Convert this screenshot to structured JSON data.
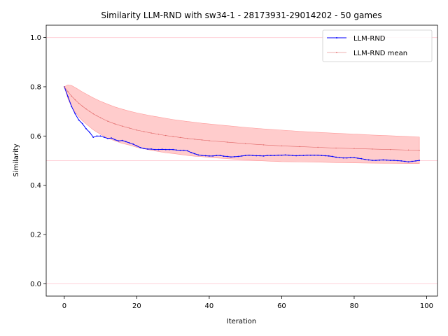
{
  "chart_data": {
    "type": "line",
    "title": "Similarity LLM-RND with sw34-1 - 28173931-29014202 - 50 games",
    "xlabel": "Iteration",
    "ylabel": "Similarity",
    "xlim": [
      -5,
      103
    ],
    "ylim": [
      -0.05,
      1.05
    ],
    "x_ticks": [
      0,
      20,
      40,
      60,
      80,
      100
    ],
    "x_tick_labels": [
      "0",
      "20",
      "40",
      "60",
      "80",
      "100"
    ],
    "y_ticks": [
      0.0,
      0.2,
      0.4,
      0.6,
      0.8,
      1.0
    ],
    "y_tick_labels": [
      "0.0",
      "0.2",
      "0.4",
      "0.6",
      "0.8",
      "1.0"
    ],
    "reference_lines": [
      0.0,
      0.5,
      1.0
    ],
    "legend_position": "top-right",
    "colors": {
      "llm_rnd": "#0000ff",
      "mean": "#e06666",
      "band": "#ffcccc",
      "reference": "#ffd0d8"
    },
    "series": [
      {
        "name": "LLM-RND",
        "x": [
          0,
          1,
          2,
          3,
          4,
          5,
          6,
          7,
          8,
          9,
          10,
          11,
          12,
          13,
          14,
          15,
          16,
          17,
          18,
          19,
          20,
          21,
          22,
          23,
          24,
          25,
          26,
          27,
          28,
          29,
          30,
          31,
          32,
          33,
          34,
          35,
          36,
          37,
          38,
          39,
          40,
          41,
          42,
          43,
          44,
          45,
          46,
          47,
          48,
          49,
          50,
          51,
          52,
          53,
          54,
          55,
          56,
          57,
          58,
          59,
          60,
          61,
          62,
          63,
          64,
          65,
          66,
          67,
          68,
          69,
          70,
          71,
          72,
          73,
          74,
          75,
          76,
          77,
          78,
          79,
          80,
          81,
          82,
          83,
          84,
          85,
          86,
          87,
          88,
          89,
          90,
          91,
          92,
          93,
          94,
          95,
          96,
          97,
          98
        ],
        "values": [
          0.8,
          0.76,
          0.72,
          0.69,
          0.665,
          0.65,
          0.63,
          0.615,
          0.595,
          0.6,
          0.6,
          0.595,
          0.59,
          0.592,
          0.585,
          0.58,
          0.582,
          0.577,
          0.572,
          0.567,
          0.56,
          0.553,
          0.549,
          0.547,
          0.547,
          0.545,
          0.545,
          0.546,
          0.545,
          0.545,
          0.545,
          0.543,
          0.542,
          0.542,
          0.54,
          0.533,
          0.528,
          0.523,
          0.521,
          0.52,
          0.519,
          0.519,
          0.521,
          0.521,
          0.518,
          0.517,
          0.515,
          0.516,
          0.517,
          0.519,
          0.521,
          0.522,
          0.521,
          0.52,
          0.52,
          0.519,
          0.521,
          0.521,
          0.521,
          0.522,
          0.522,
          0.523,
          0.522,
          0.521,
          0.52,
          0.521,
          0.521,
          0.522,
          0.522,
          0.522,
          0.522,
          0.521,
          0.52,
          0.519,
          0.517,
          0.514,
          0.512,
          0.511,
          0.511,
          0.512,
          0.512,
          0.51,
          0.508,
          0.505,
          0.503,
          0.501,
          0.501,
          0.502,
          0.503,
          0.502,
          0.501,
          0.501,
          0.5,
          0.499,
          0.497,
          0.495,
          0.497,
          0.499,
          0.501
        ]
      },
      {
        "name": "LLM-RND mean",
        "x": [
          0,
          1,
          2,
          3,
          4,
          5,
          6,
          7,
          8,
          9,
          10,
          12,
          14,
          16,
          18,
          20,
          22,
          24,
          26,
          28,
          30,
          32,
          34,
          36,
          38,
          40,
          45,
          50,
          55,
          60,
          65,
          70,
          75,
          80,
          85,
          90,
          95,
          98
        ],
        "values": [
          0.8,
          0.78,
          0.762,
          0.747,
          0.733,
          0.721,
          0.71,
          0.7,
          0.69,
          0.682,
          0.674,
          0.66,
          0.649,
          0.64,
          0.632,
          0.624,
          0.618,
          0.612,
          0.607,
          0.602,
          0.598,
          0.594,
          0.59,
          0.587,
          0.584,
          0.581,
          0.575,
          0.569,
          0.564,
          0.56,
          0.557,
          0.554,
          0.551,
          0.549,
          0.547,
          0.545,
          0.543,
          0.542
        ]
      }
    ],
    "band": {
      "x": [
        0,
        1,
        2,
        3,
        4,
        5,
        6,
        7,
        8,
        9,
        10,
        12,
        14,
        16,
        18,
        20,
        22,
        24,
        26,
        28,
        30,
        32,
        34,
        36,
        38,
        40,
        45,
        50,
        55,
        60,
        65,
        70,
        75,
        80,
        85,
        90,
        95,
        98
      ],
      "upper": [
        0.8,
        0.808,
        0.805,
        0.797,
        0.788,
        0.779,
        0.771,
        0.763,
        0.755,
        0.748,
        0.741,
        0.729,
        0.718,
        0.709,
        0.701,
        0.694,
        0.688,
        0.682,
        0.677,
        0.672,
        0.667,
        0.663,
        0.659,
        0.656,
        0.652,
        0.649,
        0.642,
        0.635,
        0.629,
        0.624,
        0.619,
        0.615,
        0.611,
        0.608,
        0.604,
        0.601,
        0.598,
        0.596
      ],
      "lower": [
        0.8,
        0.752,
        0.719,
        0.697,
        0.678,
        0.662,
        0.649,
        0.637,
        0.625,
        0.616,
        0.607,
        0.591,
        0.58,
        0.57,
        0.563,
        0.554,
        0.548,
        0.542,
        0.537,
        0.532,
        0.529,
        0.525,
        0.521,
        0.518,
        0.516,
        0.513,
        0.508,
        0.503,
        0.499,
        0.496,
        0.495,
        0.494,
        0.492,
        0.491,
        0.49,
        0.489,
        0.488,
        0.488
      ]
    }
  }
}
